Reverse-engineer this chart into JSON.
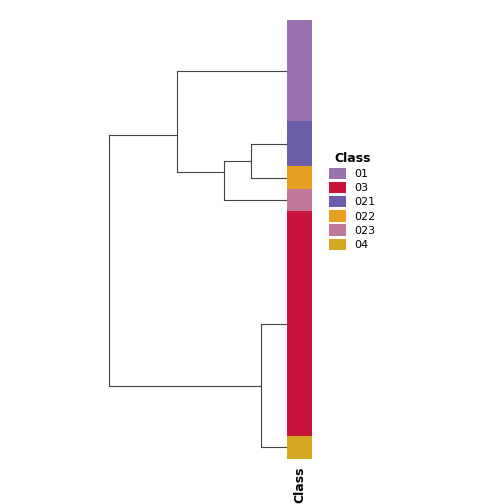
{
  "title": "",
  "xlabel": "Class",
  "legend_title": "Class",
  "legend_entries": [
    {
      "label": "01",
      "color": "#9B72B0"
    },
    {
      "label": "03",
      "color": "#C8143C"
    },
    {
      "label": "021",
      "color": "#6B5DAA"
    },
    {
      "label": "022",
      "color": "#E8A020"
    },
    {
      "label": "023",
      "color": "#C07898"
    },
    {
      "label": "04",
      "color": "#D4A820"
    }
  ],
  "dendrogram_color": "#444444",
  "background": "#FFFFFF",
  "segment_order": [
    "01",
    "021",
    "022",
    "023",
    "03",
    "04"
  ],
  "segment_sizes": [
    0.18,
    0.08,
    0.04,
    0.04,
    0.4,
    0.04
  ],
  "segment_colors": [
    "#9B72B0",
    "#6B5DAA",
    "#E8A020",
    "#C07898",
    "#C8143C",
    "#D4A820"
  ]
}
